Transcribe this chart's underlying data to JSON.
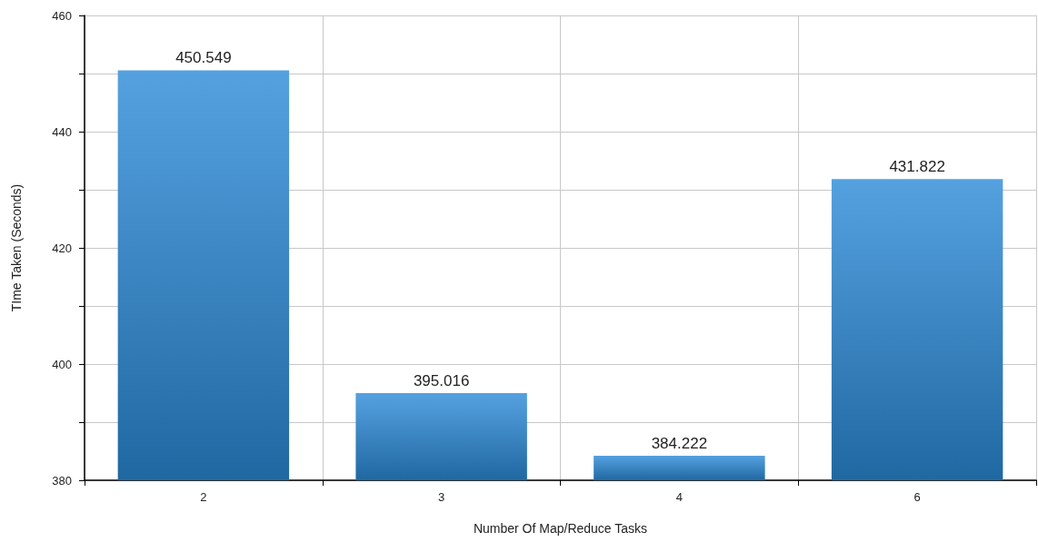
{
  "chart_data": {
    "type": "bar",
    "xlabel": "Number Of Map/Reduce Tasks",
    "ylabel": "TIme Taken (Seconds)",
    "categories": [
      "2",
      "3",
      "4",
      "6"
    ],
    "values": [
      450.549,
      395.016,
      384.222,
      431.822
    ],
    "color": "#2a8ad8",
    "ylim": [
      380,
      460
    ],
    "yticks": [
      380,
      {
        "value": 390,
        "label": null
      },
      400,
      {
        "value": 410,
        "label": null
      },
      420,
      {
        "value": 430,
        "label": null
      },
      440,
      {
        "value": 450,
        "label": null
      },
      460
    ],
    "grid": true,
    "data_labels": true
  }
}
